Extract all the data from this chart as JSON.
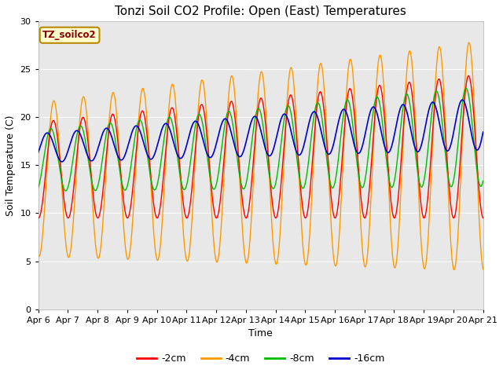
{
  "title": "Tonzi Soil CO2 Profile: Open (East) Temperatures",
  "xlabel": "Time",
  "ylabel": "Soil Temperature (C)",
  "ylim": [
    0,
    30
  ],
  "x_tick_labels": [
    "Apr 6",
    "Apr 7",
    "Apr 8",
    "Apr 9",
    "Apr 10",
    "Apr 11",
    "Apr 12",
    "Apr 13",
    "Apr 14",
    "Apr 15",
    "Apr 16",
    "Apr 17",
    "Apr 18",
    "Apr 19",
    "Apr 20",
    "Apr 21"
  ],
  "line_colors": [
    "#ff0000",
    "#ff9900",
    "#00bb00",
    "#0000cc"
  ],
  "line_labels": [
    "-2cm",
    "-4cm",
    "-8cm",
    "-16cm"
  ],
  "legend_box_text": "TZ_soilco2",
  "legend_box_text_color": "#8b0000",
  "legend_box_bg": "#ffffcc",
  "legend_box_edge": "#bb8800",
  "background_color": "#e8e8e8",
  "title_fontsize": 11,
  "axis_label_fontsize": 9,
  "tick_fontsize": 8
}
